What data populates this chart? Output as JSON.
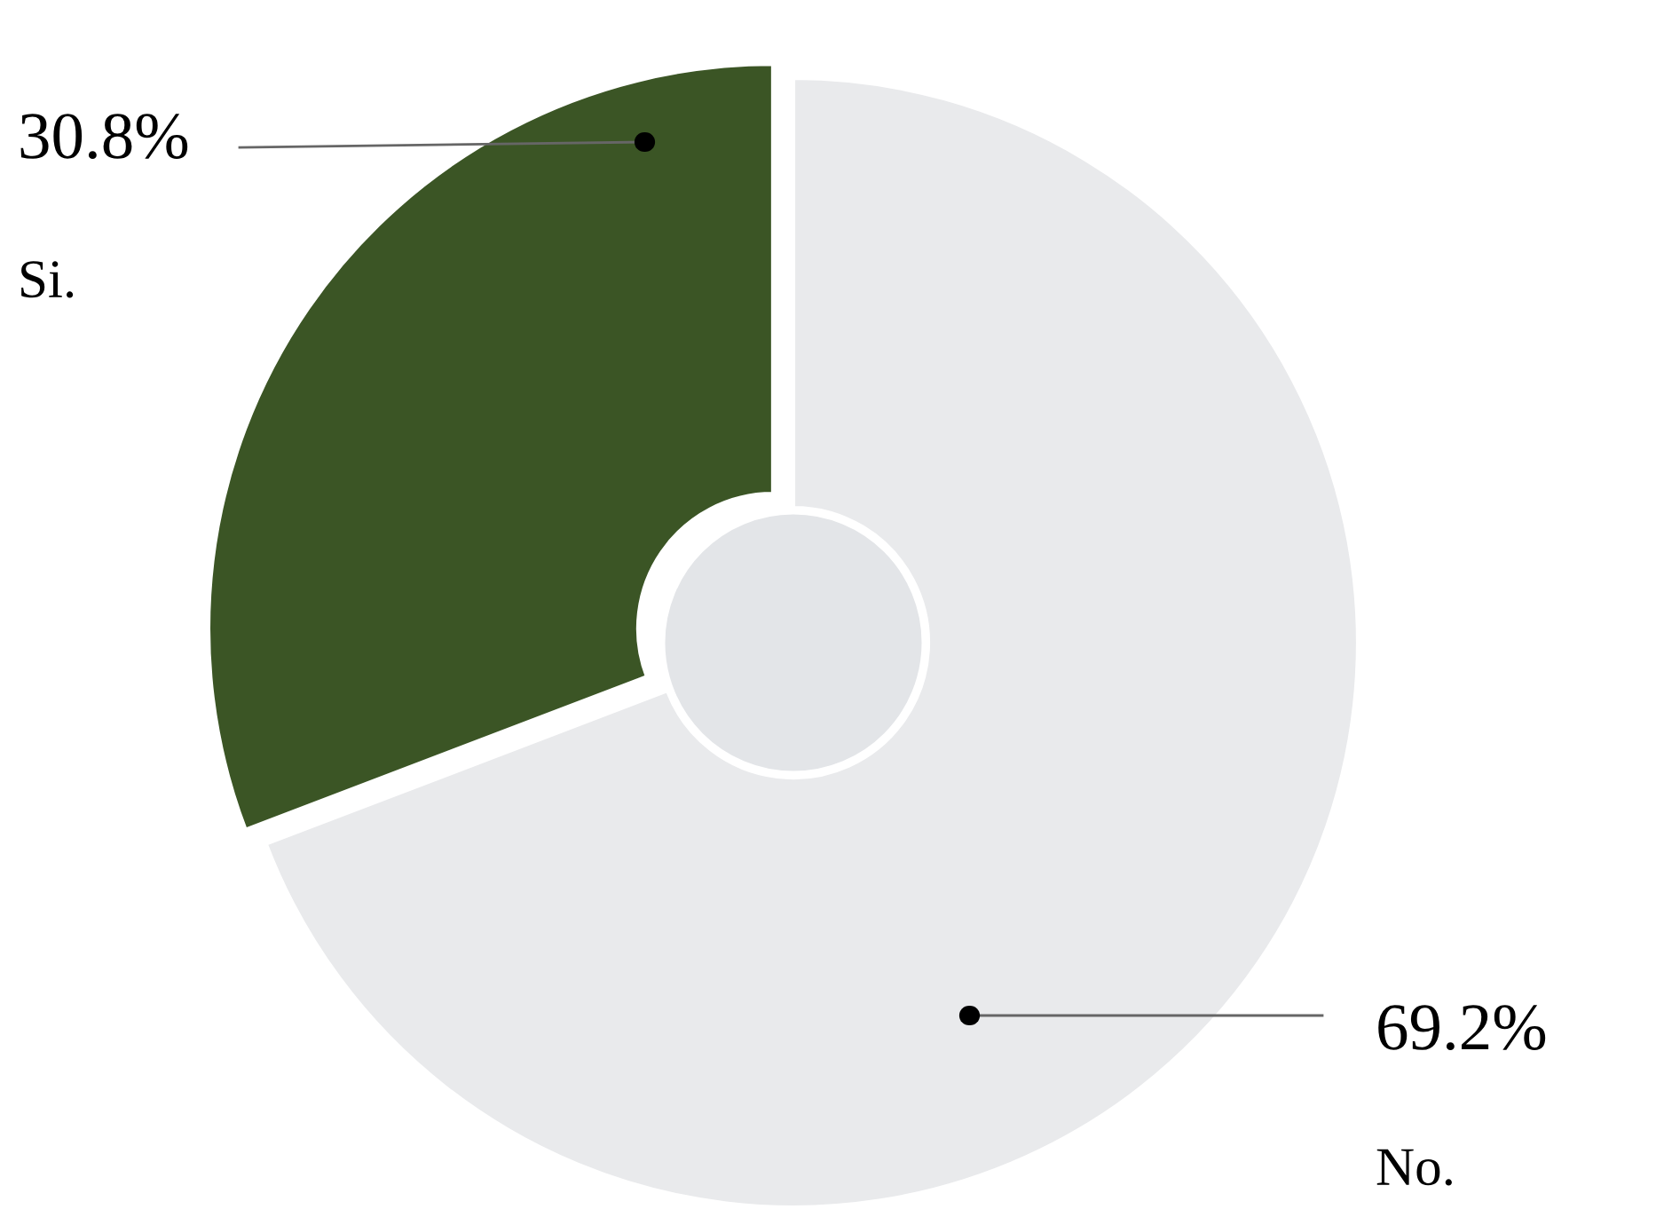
{
  "chart_data": {
    "type": "donut",
    "categories": [
      "Si.",
      "No."
    ],
    "values": [
      30.8,
      69.2
    ],
    "colors": [
      "#3b5525",
      "#e9eaec"
    ],
    "value_labels": [
      "30.8%",
      "69.2%"
    ]
  }
}
